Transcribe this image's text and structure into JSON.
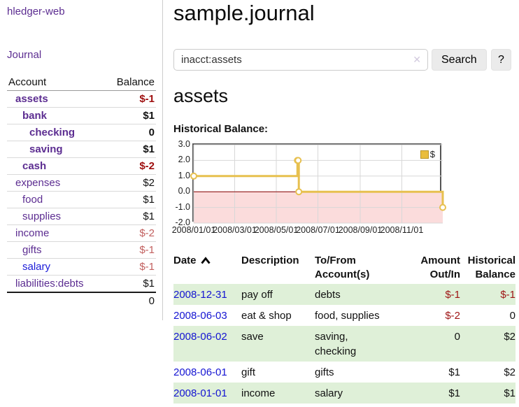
{
  "sidebar": {
    "brand": "hledger-web",
    "journal_label": "Journal",
    "accounts_table": {
      "headers": {
        "account": "Account",
        "balance": "Balance"
      },
      "rows": [
        {
          "name": "assets",
          "depth": 1,
          "bold": true,
          "balance": "$-1",
          "balance_style": "neg-strong"
        },
        {
          "name": "bank",
          "depth": 2,
          "bold": true,
          "balance": "$1",
          "balance_style": "pos"
        },
        {
          "name": "checking",
          "depth": 3,
          "bold": true,
          "balance": "0",
          "balance_style": "pos"
        },
        {
          "name": "saving",
          "depth": 3,
          "bold": true,
          "balance": "$1",
          "balance_style": "pos"
        },
        {
          "name": "cash",
          "depth": 2,
          "bold": true,
          "balance": "$-2",
          "balance_style": "neg-strong"
        },
        {
          "name": "expenses",
          "depth": 1,
          "bold": false,
          "balance": "$2",
          "balance_style": "pos"
        },
        {
          "name": "food",
          "depth": 2,
          "bold": false,
          "balance": "$1",
          "balance_style": "pos"
        },
        {
          "name": "supplies",
          "depth": 2,
          "bold": false,
          "balance": "$1",
          "balance_style": "pos"
        },
        {
          "name": "income",
          "depth": 1,
          "bold": false,
          "balance": "$-2",
          "balance_style": "neg-soft"
        },
        {
          "name": "gifts",
          "depth": 2,
          "bold": false,
          "balance": "$-1",
          "balance_style": "neg-soft"
        },
        {
          "name": "salary",
          "depth": 2,
          "bold": false,
          "balance": "$-1",
          "balance_style": "neg-soft",
          "link_color": "blue"
        },
        {
          "name": "liabilities:debts",
          "depth": 1,
          "bold": false,
          "balance": "$1",
          "balance_style": "pos"
        }
      ],
      "total": "0"
    }
  },
  "header": {
    "title": "sample.journal"
  },
  "search": {
    "value": "inacct:assets",
    "clear_icon": "✕",
    "button_label": "Search",
    "help_label": "?"
  },
  "account_page": {
    "heading": "assets"
  },
  "chart_data": {
    "type": "line",
    "step": true,
    "title": "Historical Balance:",
    "x_range": [
      "2008-01-01",
      "2008-12-31"
    ],
    "ylim": [
      -2,
      3
    ],
    "y_ticks": [
      "3.0",
      "2.0",
      "1.0",
      "0.0",
      "-1.0",
      "-2.0"
    ],
    "x_ticks": [
      "2008/01/01",
      "2008/03/01",
      "2008/05/01",
      "2008/07/01",
      "2008/09/01",
      "2008/11/01"
    ],
    "series": [
      {
        "name": "$",
        "color": "#e7c04f",
        "points": [
          {
            "x": "2008-01-01",
            "y": 1
          },
          {
            "x": "2008-06-01",
            "y": 2
          },
          {
            "x": "2008-06-02",
            "y": 2
          },
          {
            "x": "2008-06-03",
            "y": 0
          },
          {
            "x": "2008-12-31",
            "y": -1
          }
        ]
      }
    ],
    "legend_position": "top-right",
    "grid": true,
    "colors": {
      "grid": "#d8d8d8",
      "zero_line": "#8b0000",
      "negative_region": "#fbdcdc",
      "border": "#555555",
      "legend_fill": "#e9bd3e",
      "legend_border": "#b99427"
    }
  },
  "transactions": {
    "headers": [
      {
        "key": "date",
        "label": "Date",
        "align": "left",
        "sorted": "ascending"
      },
      {
        "key": "description",
        "label": "Description",
        "align": "left"
      },
      {
        "key": "accounts",
        "label": "To/From Account(s)",
        "align": "left"
      },
      {
        "key": "amount",
        "label": "Amount Out/In",
        "align": "right"
      },
      {
        "key": "balance",
        "label": "Historical Balance",
        "align": "right"
      }
    ],
    "rows": [
      {
        "date": "2008-12-31",
        "description": "pay off",
        "accounts_lines": [
          "debts"
        ],
        "amount": "$-1",
        "amount_negative": true,
        "balance": "$-1",
        "balance_negative": true
      },
      {
        "date": "2008-06-03",
        "description": "eat & shop",
        "accounts_lines": [
          "food, supplies"
        ],
        "amount": "$-2",
        "amount_negative": true,
        "balance": "0",
        "balance_negative": false
      },
      {
        "date": "2008-06-02",
        "description": "save",
        "accounts_lines": [
          "saving,",
          "checking"
        ],
        "amount": "0",
        "amount_negative": false,
        "balance": "$2",
        "balance_negative": false
      },
      {
        "date": "2008-06-01",
        "description": "gift",
        "accounts_lines": [
          "gifts"
        ],
        "amount": "$1",
        "amount_negative": false,
        "balance": "$2",
        "balance_negative": false
      },
      {
        "date": "2008-01-01",
        "description": "income",
        "accounts_lines": [
          "salary"
        ],
        "amount": "$1",
        "amount_negative": false,
        "balance": "$1",
        "balance_negative": false
      }
    ]
  },
  "colors": {
    "link_purple": "#5c2d91",
    "link_blue": "#1414d2",
    "negative_strong": "#9e0e0e",
    "negative_soft": "#c2605f",
    "row_stripe_green": "#dff0d8"
  }
}
